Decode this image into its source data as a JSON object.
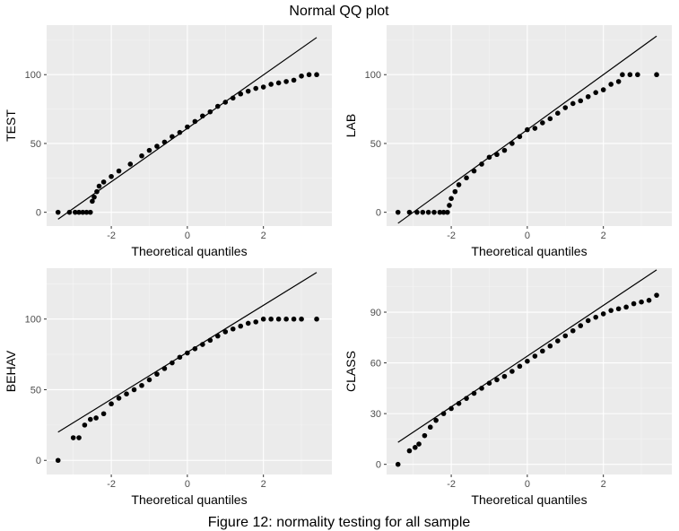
{
  "title": "Normal QQ plot",
  "caption": "Figure 12: normality testing for all sample",
  "colors": {
    "panel_bg": "#ebebeb",
    "grid_major": "#ffffff",
    "grid_minor": "#f5f5f5",
    "points": "#000000",
    "line": "#000000",
    "tick_text": "#4d4d4d"
  },
  "chart_data": [
    {
      "type": "scatter",
      "ylabel": "TEST",
      "xlabel": "Theoretical quantiles",
      "x_ticks": [
        -2,
        0,
        2
      ],
      "y_ticks": [
        0,
        50,
        100
      ],
      "xlim": [
        -3.7,
        3.8
      ],
      "ylim": [
        -10,
        136
      ],
      "line": {
        "x": [
          -3.4,
          3.4
        ],
        "y": [
          -5,
          127
        ]
      },
      "grid": true,
      "points": [
        [
          -3.4,
          0
        ],
        [
          -3.1,
          0
        ],
        [
          -2.95,
          0
        ],
        [
          -2.85,
          0
        ],
        [
          -2.75,
          0
        ],
        [
          -2.65,
          0
        ],
        [
          -2.55,
          0
        ],
        [
          -2.5,
          8
        ],
        [
          -2.45,
          11
        ],
        [
          -2.38,
          15
        ],
        [
          -2.32,
          19
        ],
        [
          -2.2,
          22
        ],
        [
          -2.0,
          26
        ],
        [
          -1.8,
          30
        ],
        [
          -1.5,
          35
        ],
        [
          -1.2,
          41
        ],
        [
          -1.0,
          45
        ],
        [
          -0.8,
          48
        ],
        [
          -0.6,
          51
        ],
        [
          -0.4,
          55
        ],
        [
          -0.2,
          58
        ],
        [
          0.0,
          62
        ],
        [
          0.2,
          66
        ],
        [
          0.4,
          70
        ],
        [
          0.6,
          73
        ],
        [
          0.8,
          77
        ],
        [
          1.0,
          80
        ],
        [
          1.2,
          83
        ],
        [
          1.4,
          86
        ],
        [
          1.6,
          88
        ],
        [
          1.8,
          90
        ],
        [
          2.0,
          91
        ],
        [
          2.2,
          93
        ],
        [
          2.4,
          94
        ],
        [
          2.6,
          95
        ],
        [
          2.8,
          96
        ],
        [
          3.0,
          99
        ],
        [
          3.2,
          100
        ],
        [
          3.4,
          100
        ]
      ]
    },
    {
      "type": "scatter",
      "ylabel": "LAB",
      "xlabel": "Theoretical quantiles",
      "x_ticks": [
        -2,
        0,
        2
      ],
      "y_ticks": [
        0,
        50,
        100
      ],
      "xlim": [
        -3.7,
        3.8
      ],
      "ylim": [
        -10,
        136
      ],
      "line": {
        "x": [
          -3.4,
          3.4
        ],
        "y": [
          -8,
          128
        ]
      },
      "grid": true,
      "points": [
        [
          -3.4,
          0
        ],
        [
          -3.1,
          0
        ],
        [
          -2.9,
          0
        ],
        [
          -2.75,
          0
        ],
        [
          -2.6,
          0
        ],
        [
          -2.45,
          0
        ],
        [
          -2.3,
          0
        ],
        [
          -2.2,
          0
        ],
        [
          -2.1,
          0
        ],
        [
          -2.05,
          5
        ],
        [
          -2.0,
          10
        ],
        [
          -1.9,
          15
        ],
        [
          -1.8,
          20
        ],
        [
          -1.6,
          25
        ],
        [
          -1.4,
          30
        ],
        [
          -1.2,
          35
        ],
        [
          -1.0,
          40
        ],
        [
          -0.8,
          42
        ],
        [
          -0.6,
          45
        ],
        [
          -0.4,
          50
        ],
        [
          -0.2,
          55
        ],
        [
          0.0,
          60
        ],
        [
          0.2,
          61
        ],
        [
          0.4,
          65
        ],
        [
          0.6,
          68
        ],
        [
          0.8,
          72
        ],
        [
          1.0,
          76
        ],
        [
          1.2,
          79
        ],
        [
          1.4,
          81
        ],
        [
          1.6,
          84
        ],
        [
          1.8,
          87
        ],
        [
          2.0,
          89
        ],
        [
          2.2,
          93
        ],
        [
          2.4,
          95
        ],
        [
          2.5,
          100
        ],
        [
          2.7,
          100
        ],
        [
          2.9,
          100
        ],
        [
          3.4,
          100
        ]
      ]
    },
    {
      "type": "scatter",
      "ylabel": "BEHAV",
      "xlabel": "Theoretical quantiles",
      "x_ticks": [
        -2,
        0,
        2
      ],
      "y_ticks": [
        0,
        50,
        100
      ],
      "xlim": [
        -3.7,
        3.8
      ],
      "ylim": [
        -10,
        136
      ],
      "line": {
        "x": [
          -3.4,
          3.4
        ],
        "y": [
          20,
          133
        ]
      },
      "grid": true,
      "points": [
        [
          -3.4,
          0
        ],
        [
          -3.0,
          16
        ],
        [
          -2.85,
          16
        ],
        [
          -2.7,
          25
        ],
        [
          -2.55,
          29
        ],
        [
          -2.4,
          30
        ],
        [
          -2.2,
          33
        ],
        [
          -2.0,
          40
        ],
        [
          -1.8,
          44
        ],
        [
          -1.6,
          47
        ],
        [
          -1.4,
          50
        ],
        [
          -1.2,
          53
        ],
        [
          -1.0,
          57
        ],
        [
          -0.8,
          61
        ],
        [
          -0.6,
          65
        ],
        [
          -0.4,
          69
        ],
        [
          -0.2,
          73
        ],
        [
          0.0,
          76
        ],
        [
          0.2,
          79
        ],
        [
          0.4,
          82
        ],
        [
          0.6,
          85
        ],
        [
          0.8,
          88
        ],
        [
          1.0,
          91
        ],
        [
          1.2,
          93
        ],
        [
          1.4,
          95
        ],
        [
          1.6,
          97
        ],
        [
          1.8,
          98
        ],
        [
          2.0,
          100
        ],
        [
          2.2,
          100
        ],
        [
          2.4,
          100
        ],
        [
          2.6,
          100
        ],
        [
          2.8,
          100
        ],
        [
          3.0,
          100
        ],
        [
          3.4,
          100
        ]
      ]
    },
    {
      "type": "scatter",
      "ylabel": "CLASS",
      "xlabel": "Theoretical quantiles",
      "x_ticks": [
        -2,
        0,
        2
      ],
      "y_ticks": [
        0,
        30,
        60,
        90
      ],
      "xlim": [
        -3.7,
        3.8
      ],
      "ylim": [
        -6,
        116
      ],
      "line": {
        "x": [
          -3.4,
          3.4
        ],
        "y": [
          13,
          115
        ]
      },
      "grid": true,
      "points": [
        [
          -3.4,
          0
        ],
        [
          -3.1,
          8
        ],
        [
          -2.95,
          10
        ],
        [
          -2.85,
          12
        ],
        [
          -2.7,
          17
        ],
        [
          -2.55,
          22
        ],
        [
          -2.4,
          26
        ],
        [
          -2.2,
          30
        ],
        [
          -2.0,
          33
        ],
        [
          -1.8,
          36
        ],
        [
          -1.6,
          39
        ],
        [
          -1.4,
          42
        ],
        [
          -1.2,
          45
        ],
        [
          -1.0,
          48
        ],
        [
          -0.8,
          50
        ],
        [
          -0.6,
          52
        ],
        [
          -0.4,
          55
        ],
        [
          -0.2,
          58
        ],
        [
          0.0,
          61
        ],
        [
          0.2,
          64
        ],
        [
          0.4,
          67
        ],
        [
          0.6,
          70
        ],
        [
          0.8,
          73
        ],
        [
          1.0,
          76
        ],
        [
          1.2,
          79
        ],
        [
          1.4,
          82
        ],
        [
          1.6,
          85
        ],
        [
          1.8,
          87
        ],
        [
          2.0,
          89
        ],
        [
          2.2,
          91
        ],
        [
          2.4,
          92
        ],
        [
          2.6,
          93
        ],
        [
          2.8,
          95
        ],
        [
          3.0,
          96
        ],
        [
          3.2,
          97
        ],
        [
          3.4,
          100
        ]
      ]
    }
  ]
}
